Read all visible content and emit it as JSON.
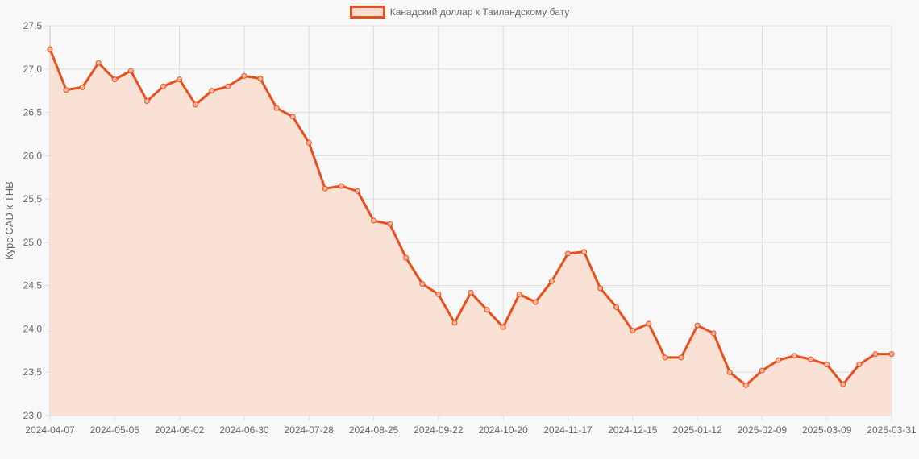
{
  "legend": {
    "label": "Канадский доллар к Таиландскому бату",
    "color": "#e8501b",
    "fill": "#fadfd4"
  },
  "colors": {
    "line": "#e8501b",
    "area": "#f9e1d6",
    "grid": "#dddddd",
    "background": "#f8f8f8"
  },
  "chart_data": {
    "type": "area",
    "title": "",
    "xlabel": "",
    "ylabel": "Курс CAD к THB",
    "ylim": [
      23.0,
      27.5
    ],
    "yticks": [
      "23,0",
      "23,5",
      "24,0",
      "24,5",
      "25,0",
      "25,5",
      "26,0",
      "26,5",
      "27,0",
      "27,5"
    ],
    "xtick_labels": [
      "2024-04-07",
      "2024-05-05",
      "2024-06-02",
      "2024-06-30",
      "2024-07-28",
      "2024-08-25",
      "2024-09-22",
      "2024-10-20",
      "2024-11-17",
      "2024-12-15",
      "2025-01-12",
      "2025-02-09",
      "2025-03-09",
      "2025-03-31"
    ],
    "grid": true,
    "legend_position": "top",
    "categories": [
      "2024-04-07",
      "2024-04-14",
      "2024-04-21",
      "2024-04-28",
      "2024-05-05",
      "2024-05-12",
      "2024-05-19",
      "2024-05-26",
      "2024-06-02",
      "2024-06-09",
      "2024-06-16",
      "2024-06-23",
      "2024-06-30",
      "2024-07-07",
      "2024-07-14",
      "2024-07-21",
      "2024-07-28",
      "2024-08-04",
      "2024-08-11",
      "2024-08-18",
      "2024-08-25",
      "2024-09-01",
      "2024-09-08",
      "2024-09-15",
      "2024-09-22",
      "2024-09-29",
      "2024-10-06",
      "2024-10-13",
      "2024-10-20",
      "2024-10-27",
      "2024-11-03",
      "2024-11-10",
      "2024-11-17",
      "2024-11-24",
      "2024-12-01",
      "2024-12-08",
      "2024-12-15",
      "2024-12-22",
      "2024-12-29",
      "2025-01-05",
      "2025-01-12",
      "2025-01-19",
      "2025-01-26",
      "2025-02-02",
      "2025-02-09",
      "2025-02-16",
      "2025-02-23",
      "2025-03-02",
      "2025-03-09",
      "2025-03-16",
      "2025-03-23",
      "2025-03-30",
      "2025-03-31"
    ],
    "series": [
      {
        "name": "Канадский доллар к Таиландскому бату",
        "values": [
          27.23,
          26.76,
          26.79,
          27.07,
          26.88,
          26.98,
          26.63,
          26.8,
          26.88,
          26.59,
          26.75,
          26.8,
          26.92,
          26.89,
          26.55,
          26.45,
          26.15,
          25.62,
          25.65,
          25.59,
          25.25,
          25.21,
          24.82,
          24.52,
          24.4,
          24.07,
          24.42,
          24.22,
          24.02,
          24.4,
          24.31,
          24.55,
          24.87,
          24.89,
          24.47,
          24.25,
          23.98,
          24.06,
          23.67,
          23.67,
          24.04,
          23.95,
          23.5,
          23.35,
          23.52,
          23.64,
          23.69,
          23.65,
          23.59,
          23.36,
          23.59,
          23.71,
          23.71
        ]
      }
    ]
  }
}
